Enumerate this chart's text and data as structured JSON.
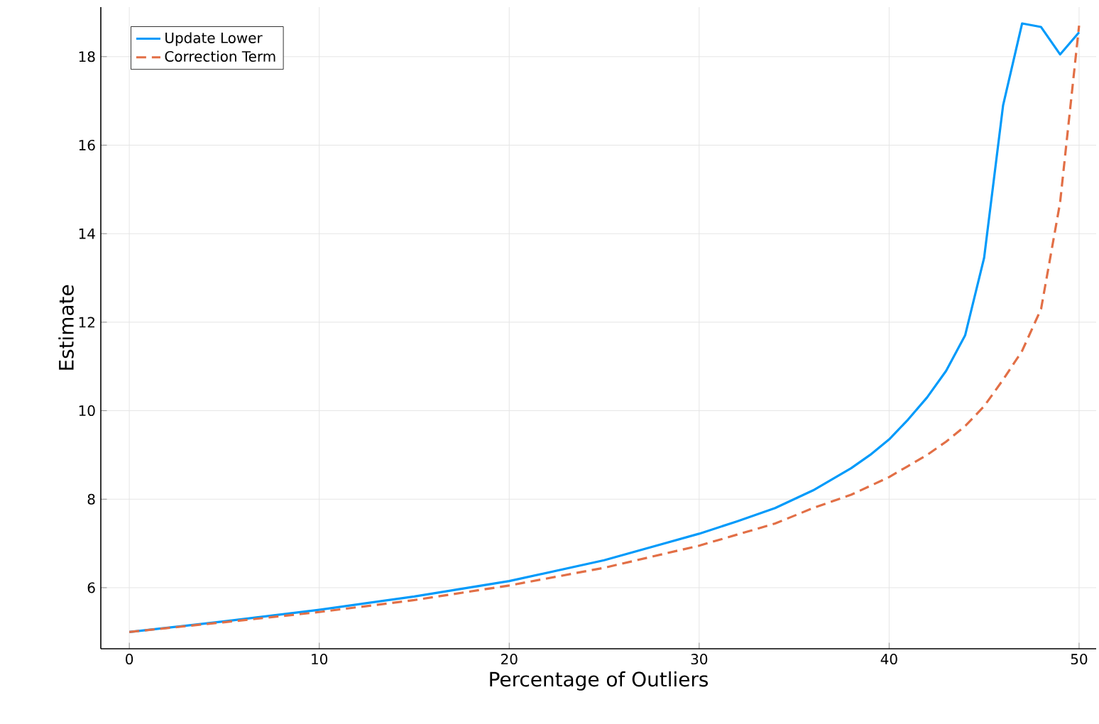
{
  "chart_data": {
    "type": "line",
    "xlabel": "Percentage of Outliers",
    "ylabel": "Estimate",
    "xlim": [
      -1.5,
      50.9
    ],
    "ylim": [
      4.62,
      19.12
    ],
    "xticks": [
      0,
      10,
      20,
      30,
      40,
      50
    ],
    "yticks": [
      6,
      8,
      10,
      12,
      14,
      16,
      18
    ],
    "grid": true,
    "legend": "top left",
    "series": [
      {
        "name": "Update Lower",
        "color": "#009afa",
        "line_style": "solid",
        "x": [
          0,
          5,
          10,
          15,
          20,
          25,
          30,
          32,
          34,
          36,
          38,
          39,
          40,
          41,
          42,
          43,
          44,
          45,
          46,
          47,
          48,
          49,
          50
        ],
        "values": [
          5.0,
          5.24,
          5.5,
          5.8,
          6.15,
          6.62,
          7.22,
          7.5,
          7.8,
          8.2,
          8.7,
          9.0,
          9.35,
          9.8,
          10.3,
          10.9,
          11.7,
          13.45,
          16.9,
          18.75,
          18.67,
          18.05,
          18.55
        ]
      },
      {
        "name": "Correction Term",
        "color": "#e26f46",
        "line_style": "dashed",
        "x": [
          0,
          5,
          10,
          15,
          20,
          25,
          30,
          32,
          34,
          36,
          38,
          40,
          41,
          42,
          43,
          44,
          45,
          46,
          47,
          48,
          49,
          50
        ],
        "values": [
          5.0,
          5.22,
          5.45,
          5.72,
          6.05,
          6.45,
          6.95,
          7.2,
          7.45,
          7.8,
          8.1,
          8.5,
          8.75,
          9.0,
          9.3,
          9.65,
          10.1,
          10.7,
          11.35,
          12.3,
          14.7,
          18.7
        ]
      }
    ]
  }
}
